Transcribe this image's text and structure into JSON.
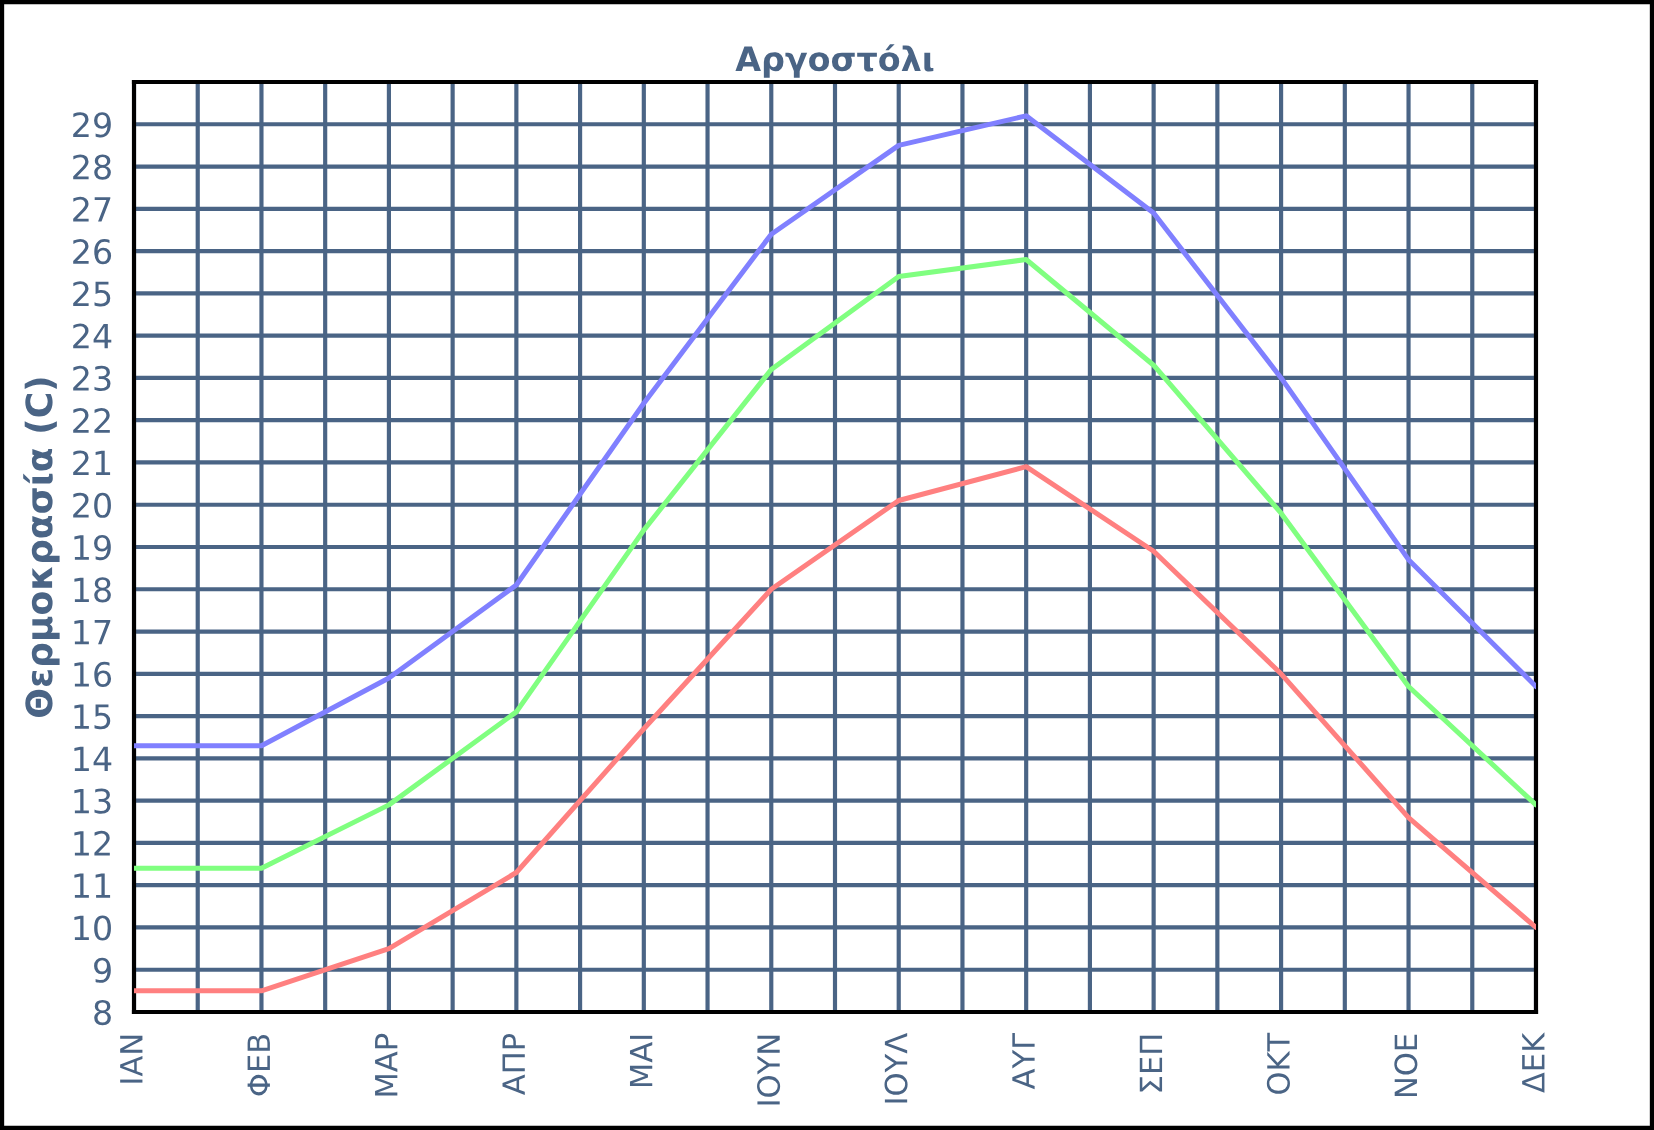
{
  "chart_data": {
    "type": "line",
    "title": "Αργοστόλι",
    "ylabel": "Θερμοκρασία (C)",
    "categories": [
      "ΙΑΝ",
      "ΦΕΒ",
      "ΜΑΡ",
      "ΑΠΡ",
      "ΜΑΙ",
      "ΙΟΥΝ",
      "ΙΟΥΛ",
      "ΑΥΓ",
      "ΣΕΠ",
      "ΟΚΤ",
      "ΝΟΕ",
      "ΔΕΚ"
    ],
    "series": [
      {
        "color": "#8080ff",
        "values": [
          14.3,
          14.3,
          15.9,
          18.1,
          22.4,
          26.4,
          28.5,
          29.2,
          26.9,
          23.0,
          18.7,
          15.7
        ]
      },
      {
        "color": "#80ff80",
        "values": [
          11.4,
          11.4,
          12.9,
          15.1,
          19.4,
          23.2,
          25.4,
          25.8,
          23.3,
          19.8,
          15.7,
          12.9
        ]
      },
      {
        "color": "#ff8080",
        "values": [
          8.5,
          8.5,
          9.5,
          11.3,
          14.7,
          18.0,
          20.1,
          20.9,
          18.9,
          16.0,
          12.6,
          10.0
        ]
      }
    ],
    "ylim": [
      8,
      30
    ],
    "yticks": [
      8,
      9,
      10,
      11,
      12,
      13,
      14,
      15,
      16,
      17,
      18,
      19,
      20,
      21,
      22,
      23,
      24,
      25,
      26,
      27,
      28,
      29
    ],
    "grid": true,
    "legend": false,
    "marker": "none",
    "line_style": "solid"
  }
}
